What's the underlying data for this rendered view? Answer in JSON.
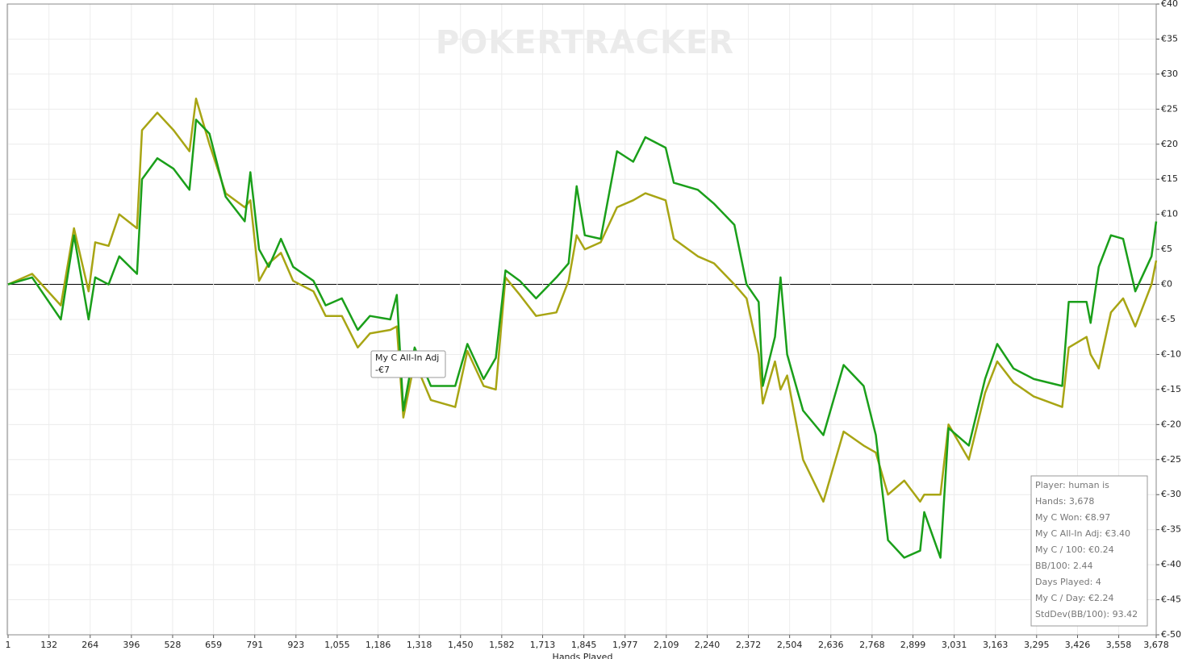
{
  "chart_data": {
    "type": "line",
    "watermark": "POKERTRACKER",
    "x_label": "Hands Played",
    "x": [
      1,
      78,
      170,
      212,
      259,
      280,
      323,
      357,
      414,
      430,
      479,
      531,
      582,
      603,
      646,
      698,
      759,
      777,
      805,
      836,
      875,
      914,
      979,
      1018,
      1070,
      1121,
      1160,
      1225,
      1246,
      1267,
      1303,
      1355,
      1433,
      1472,
      1524,
      1563,
      1594,
      1640,
      1692,
      1757,
      1796,
      1822,
      1848,
      1899,
      1951,
      2003,
      2042,
      2107,
      2133,
      2210,
      2262,
      2327,
      2366,
      2405,
      2418,
      2457,
      2475,
      2496,
      2547,
      2612,
      2677,
      2741,
      2780,
      2819,
      2871,
      2922,
      2935,
      2987,
      3013,
      3078,
      3130,
      3169,
      3221,
      3286,
      3377,
      3398,
      3455,
      3468,
      3494,
      3533,
      3572,
      3611,
      3663,
      3678
    ],
    "series": [
      {
        "color": "#1a9f1a",
        "values": [
          0,
          1,
          -5,
          7,
          -5,
          1,
          0,
          4,
          1.5,
          15,
          18,
          16.5,
          13.5,
          23.5,
          21.5,
          12.5,
          9,
          16,
          5,
          2.5,
          6.5,
          2.5,
          0.5,
          -3,
          -2,
          -6.5,
          -4.5,
          -5,
          -1.5,
          -18,
          -9,
          -14.5,
          -14.5,
          -8.5,
          -13.5,
          -10.5,
          2,
          0.5,
          -2,
          1,
          3,
          14,
          7,
          6.5,
          19,
          17.5,
          21,
          19.5,
          14.5,
          13.5,
          11.5,
          8.5,
          0,
          -2.5,
          -14.5,
          -7.5,
          1,
          -10,
          -18,
          -21.5,
          -11.5,
          -14.5,
          -21.5,
          -36.5,
          -39,
          -38,
          -32.5,
          -39,
          -20.5,
          -23,
          -13.5,
          -8.5,
          -12,
          -13.5,
          -14.5,
          -2.5,
          -2.5,
          -5.5,
          2.5,
          7,
          6.5,
          -1,
          4,
          8.97
        ]
      },
      {
        "name": "My C All-In Adj",
        "color": "#a8a514",
        "values": [
          0,
          1.5,
          -3,
          8,
          -1,
          6,
          5.5,
          10,
          8,
          22,
          24.5,
          22,
          19,
          26.5,
          20,
          13,
          11,
          12,
          0.5,
          3,
          4.5,
          0.5,
          -1,
          -4.5,
          -4.5,
          -9,
          -7,
          -6.5,
          -6,
          -19,
          -11,
          -16.5,
          -17.5,
          -9.5,
          -14.5,
          -15,
          1,
          -1.5,
          -4.5,
          -4,
          0.5,
          7,
          5,
          6,
          11,
          12,
          13,
          12,
          6.5,
          4,
          3,
          0,
          -2,
          -10,
          -17,
          -11,
          -15,
          -13,
          -25,
          -31,
          -21,
          -23,
          -24,
          -30,
          -28,
          -31,
          -30,
          -30,
          -20,
          -25,
          -15.5,
          -11,
          -14,
          -16,
          -17.5,
          -9,
          -7.5,
          -10,
          -12,
          -4,
          -2,
          -6,
          0,
          3.4
        ]
      }
    ],
    "xlim": [
      1,
      3678
    ],
    "xticks": [
      1,
      132,
      264,
      396,
      528,
      659,
      791,
      923,
      {
        "value": 1055,
        "label": "1,055"
      },
      {
        "value": 1186,
        "label": "1,186"
      },
      {
        "value": 1318,
        "label": "1,318"
      },
      {
        "value": 1450,
        "label": "1,450"
      },
      {
        "value": 1582,
        "label": "1,582"
      },
      {
        "value": 1713,
        "label": "1,713"
      },
      {
        "value": 1845,
        "label": "1,845"
      },
      {
        "value": 1977,
        "label": "1,977"
      },
      {
        "value": 2109,
        "label": "2,109"
      },
      {
        "value": 2240,
        "label": "2,240"
      },
      {
        "value": 2372,
        "label": "2,372"
      },
      {
        "value": 2504,
        "label": "2,504"
      },
      {
        "value": 2636,
        "label": "2,636"
      },
      {
        "value": 2768,
        "label": "2,768"
      },
      {
        "value": 2899,
        "label": "2,899"
      },
      {
        "value": 3031,
        "label": "3,031"
      },
      {
        "value": 3163,
        "label": "3,163"
      },
      {
        "value": 3295,
        "label": "3,295"
      },
      {
        "value": 3426,
        "label": "3,426"
      },
      {
        "value": 3558,
        "label": "3,558"
      },
      {
        "value": 3678,
        "label": "3,678"
      }
    ],
    "ylim": [
      -50,
      40
    ],
    "yticks": [
      {
        "value": 40,
        "label": "€40"
      },
      {
        "value": 35,
        "label": "€35"
      },
      {
        "value": 30,
        "label": "€30"
      },
      {
        "value": 25,
        "label": "€25"
      },
      {
        "value": 20,
        "label": "€20"
      },
      {
        "value": 15,
        "label": "€15"
      },
      {
        "value": 10,
        "label": "€10"
      },
      {
        "value": 5,
        "label": "€5"
      },
      {
        "value": 0,
        "label": "€0"
      },
      {
        "value": -5,
        "label": "€-5"
      },
      {
        "value": -10,
        "label": "€-10"
      },
      {
        "value": -15,
        "label": "€-15"
      },
      {
        "value": -20,
        "label": "€-20"
      },
      {
        "value": -25,
        "label": "€-25"
      },
      {
        "value": -30,
        "label": "€-30"
      },
      {
        "value": -35,
        "label": "€-35"
      },
      {
        "value": -40,
        "label": "€-40"
      },
      {
        "value": -45,
        "label": "€-45"
      },
      {
        "value": -50,
        "label": "€-50"
      }
    ],
    "grid": true,
    "tooltip": {
      "value_label": "-€7"
    },
    "stats_box": [
      "Player: human is",
      "Hands: 3,678",
      "My C Won: €8.97",
      "My C All-In Adj: €3.40",
      "My C / 100: €0.24",
      "BB/100: 2.44",
      "Days Played: 4",
      "My C / Day: €2.24",
      "StdDev(BB/100): 93.42"
    ]
  }
}
